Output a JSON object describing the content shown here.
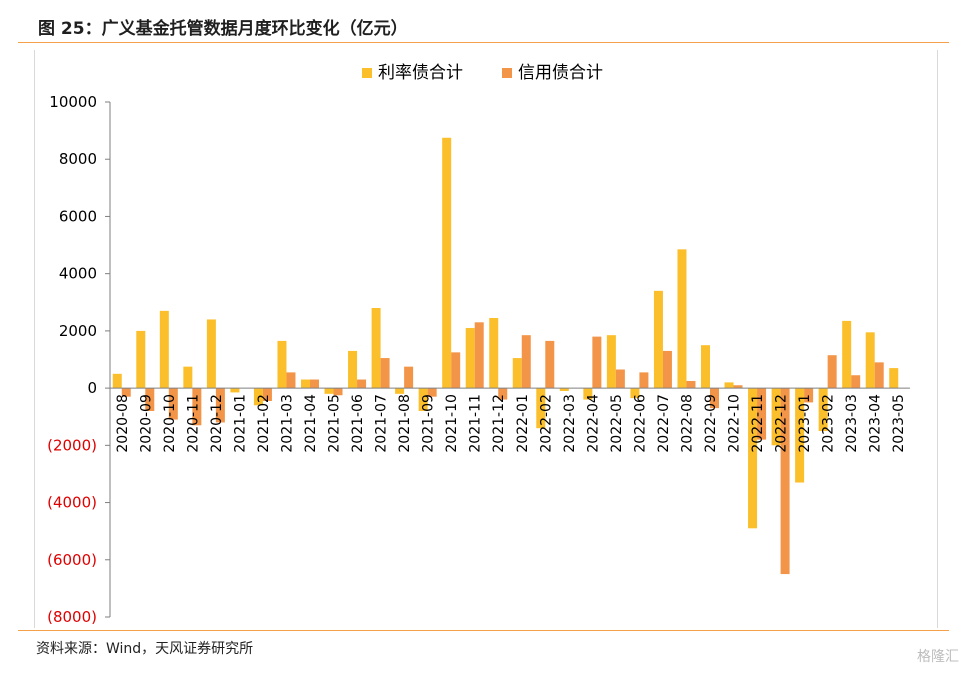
{
  "header": {
    "title": "图 25：广义基金托管数据月度环比变化（亿元）"
  },
  "footer": {
    "source": "资料来源：Wind，天风证券研究所",
    "watermark": "格隆汇"
  },
  "colors": {
    "rate": "#FBBF2B",
    "credit": "#F39548",
    "rule": "#F5A04A",
    "negative_label": "#E00000"
  },
  "chart_data": {
    "type": "bar",
    "title": "",
    "xlabel": "",
    "ylabel": "",
    "ylim": [
      -8000,
      10000
    ],
    "yticks": [
      10000,
      8000,
      6000,
      4000,
      2000,
      0,
      -2000,
      -4000,
      -6000,
      -8000
    ],
    "ytick_labels": [
      "10000",
      "8000",
      "6000",
      "4000",
      "2000",
      "0",
      "(2000)",
      "(4000)",
      "(6000)",
      "(8000)"
    ],
    "legend_position": "top-center",
    "grid": false,
    "categories": [
      "2020-08",
      "2020-09",
      "2020-10",
      "2020-11",
      "2020-12",
      "2021-01",
      "2021-02",
      "2021-03",
      "2021-04",
      "2021-05",
      "2021-06",
      "2021-07",
      "2021-08",
      "2021-09",
      "2021-10",
      "2021-11",
      "2021-12",
      "2022-01",
      "2022-02",
      "2022-03",
      "2022-04",
      "2022-05",
      "2022-06",
      "2022-07",
      "2022-08",
      "2022-09",
      "2022-10",
      "2022-11",
      "2022-12",
      "2023-01",
      "2023-02",
      "2023-03",
      "2023-04",
      "2023-05"
    ],
    "series": [
      {
        "name": "利率债合计",
        "color": "#FBBF2B",
        "values": [
          500,
          2000,
          2700,
          750,
          2400,
          -150,
          -600,
          1650,
          300,
          -200,
          1300,
          2800,
          -200,
          -800,
          8750,
          2100,
          2450,
          1050,
          -1400,
          -100,
          -400,
          1850,
          -350,
          3400,
          4850,
          1500,
          200,
          -4900,
          -2000,
          -3300,
          -1500,
          2350,
          1950,
          700
        ]
      },
      {
        "name": "信用债合计",
        "color": "#F39548",
        "values": [
          -300,
          -800,
          -1100,
          -1300,
          -1200,
          0,
          -450,
          550,
          300,
          -250,
          300,
          1050,
          750,
          -300,
          1250,
          2300,
          -400,
          1850,
          1650,
          0,
          1800,
          650,
          550,
          1300,
          250,
          -700,
          100,
          -1800,
          -6500,
          -500,
          1150,
          450,
          900,
          0
        ]
      }
    ]
  }
}
